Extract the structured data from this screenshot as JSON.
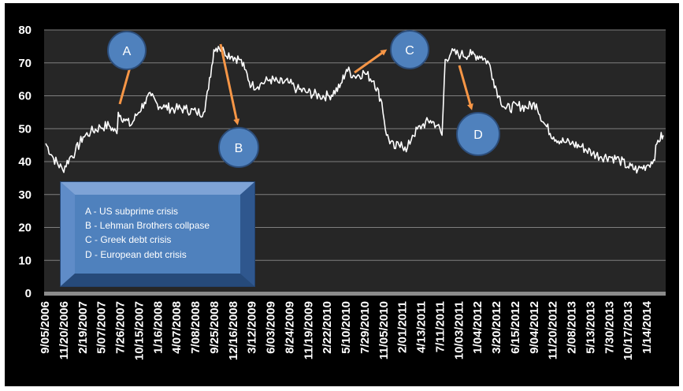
{
  "chart_data": {
    "type": "line",
    "title": "",
    "xlabel": "",
    "ylabel": "",
    "ylim": [
      0,
      80
    ],
    "yticks": [
      0,
      10,
      20,
      30,
      40,
      50,
      60,
      70,
      80
    ],
    "grid": "horizontal",
    "x_tick_labels": [
      "9/05/2006",
      "11/20/2006",
      "2/19/2007",
      "5/07/2007",
      "7/26/2007",
      "10/15/2007",
      "1/16/2008",
      "4/07/2008",
      "7/08/2008",
      "9/25/2008",
      "12/16/2008",
      "3/12/2009",
      "6/03/2009",
      "8/24/2009",
      "11/19/2009",
      "2/22/2010",
      "5/10/2010",
      "7/29/2010",
      "11/05/2010",
      "2/01/2011",
      "4/13/2011",
      "7/11/2011",
      "10/03/2011",
      "1/04/2012",
      "3/20/2012",
      "6/15/2012",
      "9/04/2012",
      "11/20/2012",
      "2/08/2013",
      "5/13/2013",
      "7/30/2013",
      "10/17/2013",
      "1/14/2014"
    ],
    "series": [
      {
        "color": "#ffffff",
        "points": [
          [
            "2006-09-05",
            45.5
          ],
          [
            "2006-10-10",
            41.0
          ],
          [
            "2006-11-20",
            37.5
          ],
          [
            "2006-12-20",
            41.0
          ],
          [
            "2007-01-15",
            43.0
          ],
          [
            "2007-02-19",
            47.5
          ],
          [
            "2007-03-25",
            49.0
          ],
          [
            "2007-05-07",
            50.5
          ],
          [
            "2007-06-15",
            51.0
          ],
          [
            "2007-07-20",
            48.5
          ],
          [
            "2007-07-26",
            55.0
          ],
          [
            "2007-08-20",
            53.0
          ],
          [
            "2007-09-20",
            51.0
          ],
          [
            "2007-10-15",
            54.0
          ],
          [
            "2007-11-20",
            58.0
          ],
          [
            "2007-12-20",
            60.0
          ],
          [
            "2008-01-16",
            57.5
          ],
          [
            "2008-02-20",
            56.5
          ],
          [
            "2008-04-07",
            56.0
          ],
          [
            "2008-05-20",
            56.0
          ],
          [
            "2008-07-08",
            55.0
          ],
          [
            "2008-08-10",
            55.0
          ],
          [
            "2008-09-01",
            62.0
          ],
          [
            "2008-09-25",
            74.0
          ],
          [
            "2008-10-15",
            75.0
          ],
          [
            "2008-11-10",
            73.5
          ],
          [
            "2008-12-16",
            72.0
          ],
          [
            "2009-01-20",
            71.0
          ],
          [
            "2009-02-10",
            68.0
          ],
          [
            "2009-03-12",
            63.0
          ],
          [
            "2009-04-20",
            63.5
          ],
          [
            "2009-06-03",
            65.0
          ],
          [
            "2009-07-10",
            64.0
          ],
          [
            "2009-08-24",
            64.0
          ],
          [
            "2009-10-01",
            62.0
          ],
          [
            "2009-11-19",
            61.0
          ],
          [
            "2010-01-10",
            60.0
          ],
          [
            "2010-02-22",
            60.0
          ],
          [
            "2010-04-10",
            62.5
          ],
          [
            "2010-05-10",
            68.0
          ],
          [
            "2010-06-15",
            66.0
          ],
          [
            "2010-07-29",
            67.0
          ],
          [
            "2010-09-10",
            64.5
          ],
          [
            "2010-10-15",
            58.0
          ],
          [
            "2010-11-05",
            48.0
          ],
          [
            "2010-12-10",
            44.0
          ],
          [
            "2011-01-10",
            46.0
          ],
          [
            "2011-02-01",
            43.0
          ],
          [
            "2011-03-01",
            48.0
          ],
          [
            "2011-04-13",
            51.0
          ],
          [
            "2011-05-20",
            52.5
          ],
          [
            "2011-06-20",
            51.0
          ],
          [
            "2011-07-11",
            48.0
          ],
          [
            "2011-07-25",
            71.0
          ],
          [
            "2011-08-20",
            73.0
          ],
          [
            "2011-10-03",
            72.5
          ],
          [
            "2011-11-20",
            72.5
          ],
          [
            "2012-01-04",
            72.0
          ],
          [
            "2012-02-05",
            70.0
          ],
          [
            "2012-02-25",
            65.0
          ],
          [
            "2012-03-20",
            60.0
          ],
          [
            "2012-04-20",
            56.0
          ],
          [
            "2012-06-15",
            57.0
          ],
          [
            "2012-07-20",
            56.5
          ],
          [
            "2012-09-04",
            57.5
          ],
          [
            "2012-10-05",
            52.0
          ],
          [
            "2012-11-20",
            47.5
          ],
          [
            "2013-01-05",
            46.0
          ],
          [
            "2013-02-08",
            45.5
          ],
          [
            "2013-03-25",
            44.5
          ],
          [
            "2013-05-13",
            42.5
          ],
          [
            "2013-06-20",
            41.5
          ],
          [
            "2013-07-30",
            41.5
          ],
          [
            "2013-09-10",
            40.5
          ],
          [
            "2013-10-17",
            38.5
          ],
          [
            "2013-12-01",
            37.5
          ],
          [
            "2014-01-14",
            39.0
          ],
          [
            "2014-02-10",
            40.5
          ],
          [
            "2014-03-01",
            46.5
          ],
          [
            "2014-03-25",
            48.0
          ]
        ]
      }
    ],
    "annotations": [
      {
        "label": "A",
        "color": "#4f81bd"
      },
      {
        "label": "B",
        "color": "#4f81bd"
      },
      {
        "label": "C",
        "color": "#4f81bd"
      },
      {
        "label": "D",
        "color": "#4f81bd"
      }
    ],
    "arrow_color": "#f79646",
    "legend_items": [
      "A - US subprime crisis",
      "B - Lehman Brothers collpase",
      "C - Greek debt crisis",
      "D - European debt crisis"
    ],
    "colors": {
      "background": "#000000",
      "plot": "#262626",
      "grid": "#7f7f7f",
      "axis_band": "#8c8c8c",
      "box": "#4f81bd"
    }
  }
}
